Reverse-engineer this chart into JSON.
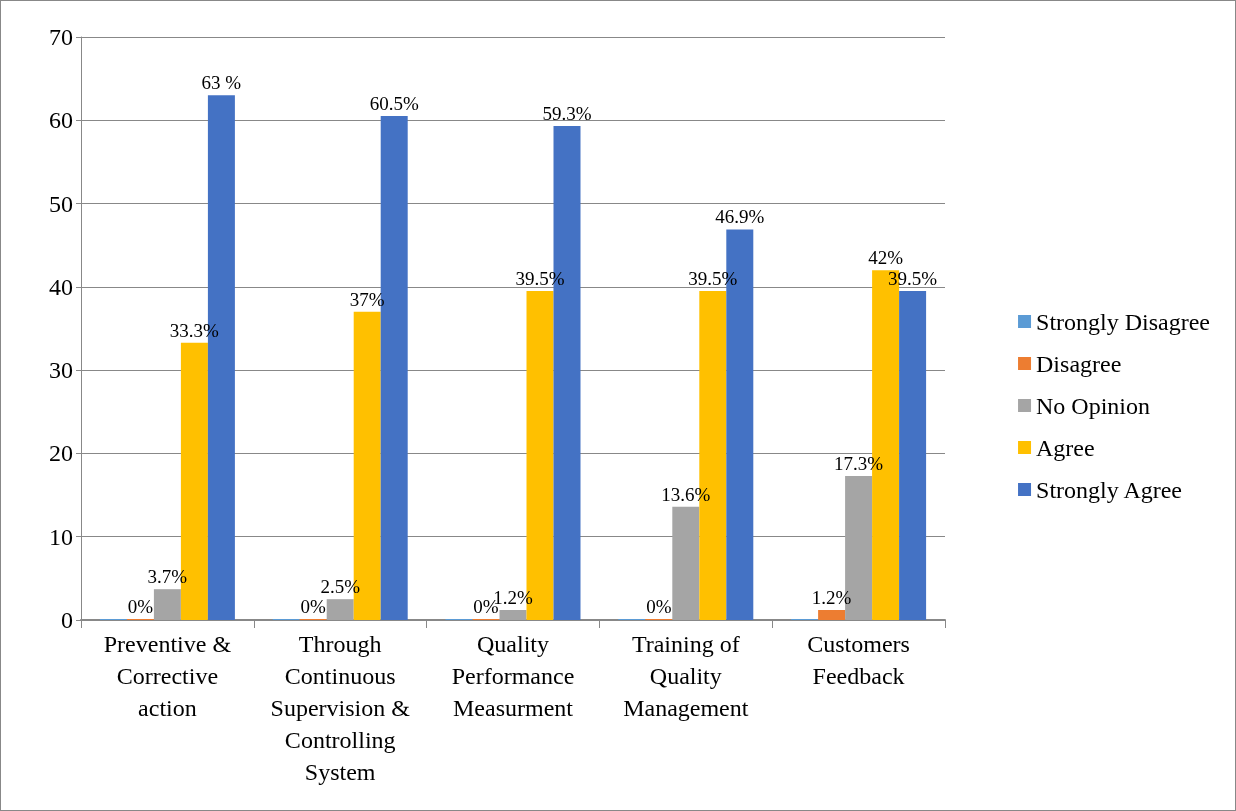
{
  "chart_data": {
    "type": "bar",
    "categories": [
      "Preventive & Corrective action",
      "Through Continuous Supervision & Controlling System",
      "Quality Performance Measurment",
      "Training of Quality Management",
      "Customers Feedback"
    ],
    "series": [
      {
        "name": "Strongly Disagree",
        "color": "#5b9bd5",
        "values": [
          0,
          0,
          0,
          0,
          0
        ],
        "value_labels": [
          null,
          null,
          null,
          null,
          null
        ]
      },
      {
        "name": "Disagree",
        "color": "#ed7d31",
        "values": [
          0,
          0,
          0,
          0,
          1.2
        ],
        "value_labels": [
          "0%",
          "0%",
          "0%",
          "0%",
          "1.2%"
        ]
      },
      {
        "name": "No Opinion",
        "color": "#a5a5a5",
        "values": [
          3.7,
          2.5,
          1.2,
          13.6,
          17.3
        ],
        "value_labels": [
          "3.7%",
          "2.5%",
          "1.2%",
          "13.6%",
          "17.3%"
        ]
      },
      {
        "name": "Agree",
        "color": "#ffc000",
        "values": [
          33.3,
          37,
          39.5,
          39.5,
          42
        ],
        "value_labels": [
          "33.3%",
          "37%",
          "39.5%",
          "39.5%",
          "42%"
        ]
      },
      {
        "name": "Strongly Agree",
        "color": "#4472c4",
        "values": [
          63,
          60.5,
          59.3,
          46.9,
          39.5
        ],
        "value_labels": [
          "63 %",
          "60.5%",
          "59.3%",
          "46.9%",
          "39.5%"
        ]
      }
    ],
    "ylim": [
      0,
      70
    ],
    "yticks": [
      0,
      10,
      20,
      30,
      40,
      50,
      60,
      70
    ],
    "grid": "y",
    "legend": "right"
  }
}
